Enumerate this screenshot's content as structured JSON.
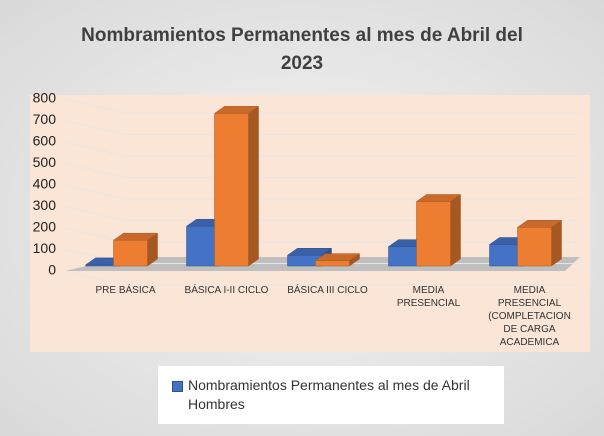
{
  "chart_data": {
    "type": "bar3d",
    "title": "Nombramientos Permanentes  al mes de Abril del 2023",
    "categories": [
      "PRE BÁSICA",
      "BÁSICA  I-II CICLO",
      "BÁSICA  III CICLO",
      "MEDIA PRESENCIAL",
      "MEDIA PRESENCIAL (COMPLETACION DE CARGA ACADEMICA"
    ],
    "series": [
      {
        "name": "Nombramientos Permanentes  al mes de Abril Hombres",
        "color": "#4472c4",
        "values": [
          5,
          185,
          50,
          90,
          100
        ]
      },
      {
        "color": "#ed7d31",
        "values": [
          120,
          710,
          25,
          300,
          180
        ]
      }
    ],
    "ylim": [
      0,
      800
    ],
    "yticks": [
      0,
      100,
      200,
      300,
      400,
      500,
      600,
      700,
      800
    ],
    "grid": true
  }
}
